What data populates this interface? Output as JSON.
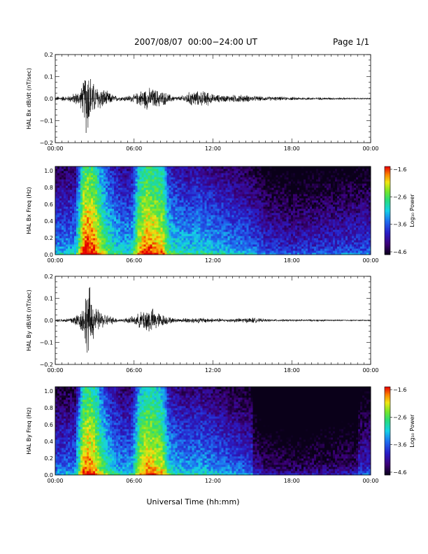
{
  "header": {
    "title": "2007/08/07  00:00−24:00 UT",
    "page": "Page 1/1"
  },
  "chart_data": [
    {
      "type": "line",
      "ylabel": "HAL Bx dB/dt (nT/sec)",
      "ylim": [
        -0.2,
        0.2
      ],
      "yticks": [
        "0.2",
        "0.1",
        "0.0",
        "−0.1",
        "−0.2"
      ],
      "xticks": [
        "00:00",
        "06:00",
        "12:00",
        "18:00",
        "00:00"
      ],
      "xlim_hours": [
        0,
        24
      ],
      "series": [
        {
          "x_hours": [
            0,
            1,
            1.9,
            2.2,
            2.4,
            2.6,
            2.8,
            3.0,
            3.5,
            4.0,
            4.5,
            5.0,
            6.0,
            6.5,
            7.0,
            7.5,
            8.0,
            8.5,
            9.0,
            9.5,
            10.0,
            10.5,
            11.0,
            11.5,
            12.0,
            13.0,
            14.0,
            15.0,
            16.0,
            18.0,
            20.0,
            22.0,
            24.0
          ],
          "amplitude": [
            0.008,
            0.01,
            0.03,
            0.07,
            0.15,
            0.1,
            0.07,
            0.05,
            0.04,
            0.025,
            0.012,
            0.008,
            0.015,
            0.03,
            0.04,
            0.035,
            0.03,
            0.02,
            0.01,
            0.008,
            0.02,
            0.03,
            0.025,
            0.03,
            0.015,
            0.012,
            0.015,
            0.01,
            0.008,
            0.006,
            0.005,
            0.004,
            0.003
          ]
        }
      ]
    },
    {
      "type": "heatmap",
      "ylabel": "HAL Bx Freq (Hz)",
      "ylim": [
        0,
        1.0
      ],
      "yticks": [
        "1.0",
        "0.8",
        "0.6",
        "0.4",
        "0.2",
        "0.0"
      ],
      "xticks": [
        "00:00",
        "06:00",
        "12:00",
        "18:00",
        "00:00"
      ],
      "colorbar": {
        "label": "Log₁₀ Power",
        "range": [
          -4.6,
          -1.6
        ],
        "ticks": [
          "−1.6",
          "−2.6",
          "−3.6",
          "−4.6"
        ]
      }
    },
    {
      "type": "line",
      "ylabel": "HAL By dB/dt (nT/sec)",
      "ylim": [
        -0.2,
        0.2
      ],
      "yticks": [
        "0.2",
        "0.1",
        "0.0",
        "−0.1",
        "−0.2"
      ],
      "xticks": [
        "00:00",
        "06:00",
        "12:00",
        "18:00",
        "00:00"
      ],
      "xlim_hours": [
        0,
        24
      ],
      "series": [
        {
          "x_hours": [
            0,
            1,
            1.9,
            2.2,
            2.4,
            2.6,
            2.8,
            3.0,
            3.5,
            4.0,
            4.5,
            5.0,
            6.0,
            6.5,
            7.0,
            7.5,
            8.0,
            8.5,
            9.0,
            9.5,
            10.0,
            11.0,
            12.0,
            13.0,
            14.0,
            15.0,
            16.0,
            18.0,
            20.0,
            22.0,
            24.0
          ],
          "amplitude": [
            0.005,
            0.008,
            0.03,
            0.07,
            0.12,
            0.13,
            0.08,
            0.05,
            0.03,
            0.02,
            0.01,
            0.006,
            0.015,
            0.03,
            0.05,
            0.04,
            0.025,
            0.015,
            0.008,
            0.006,
            0.01,
            0.01,
            0.008,
            0.006,
            0.008,
            0.01,
            0.005,
            0.004,
            0.004,
            0.003,
            0.003
          ]
        }
      ]
    },
    {
      "type": "heatmap",
      "ylabel": "HAL By Freq (Hz)",
      "ylim": [
        0,
        1.0
      ],
      "yticks": [
        "1.0",
        "0.8",
        "0.6",
        "0.4",
        "0.2",
        "0.0"
      ],
      "xticks": [
        "00:00",
        "06:00",
        "12:00",
        "18:00",
        "00:00"
      ],
      "colorbar": {
        "label": "Log₁₀ Power",
        "range": [
          -4.6,
          -1.6
        ],
        "ticks": [
          "−1.6",
          "−2.6",
          "−3.6",
          "−4.6"
        ]
      }
    }
  ],
  "xlabel": "Universal Time (hh:mm)"
}
